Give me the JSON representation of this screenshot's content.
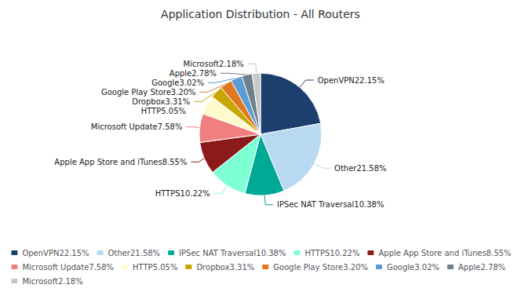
{
  "chart_data": {
    "type": "pie",
    "title": "Application Distribution - All Routers",
    "categories": [
      "OpenVPN22.15%",
      "Other21.58%",
      "IPSec NAT Traversal10.38%",
      "HTTPS10.22%",
      "Apple App Store and iTunes8.55%",
      "Microsoft Update7.58%",
      "HTTP5.05%",
      "Dropbox3.31%",
      "Google Play Store3.20%",
      "Google3.02%",
      "Apple2.78%",
      "Microsoft2.18%"
    ],
    "values": [
      22.15,
      21.58,
      10.38,
      10.22,
      8.55,
      7.58,
      5.05,
      3.31,
      3.2,
      3.02,
      2.78,
      2.18
    ],
    "colors": [
      "#1c3f6e",
      "#b8d9f0",
      "#00a896",
      "#7fffd4",
      "#8b1a1a",
      "#f08080",
      "#fffacd",
      "#c8a800",
      "#e07820",
      "#5b9bd5",
      "#6e7f8d",
      "#c8c8c8"
    ],
    "legend": "bottom"
  }
}
